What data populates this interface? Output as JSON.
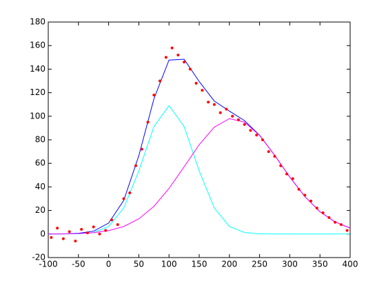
{
  "chart_data": {
    "type": "line",
    "xlim": [
      -100,
      400
    ],
    "xticks": [
      -100,
      -50,
      0,
      50,
      100,
      150,
      200,
      250,
      300,
      350,
      400
    ],
    "ylim": [
      -20,
      180
    ],
    "yticks": [
      -20,
      0,
      20,
      40,
      60,
      80,
      100,
      120,
      140,
      160,
      180
    ],
    "series": [
      {
        "color": "#ff0000",
        "style": "points",
        "x": [
          -95,
          -85,
          -75,
          -65,
          -55,
          -45,
          -35,
          -25,
          -15,
          -5,
          5,
          15,
          25,
          35,
          45,
          55,
          65,
          75,
          85,
          95,
          105,
          115,
          125,
          135,
          145,
          155,
          165,
          175,
          185,
          195,
          205,
          215,
          225,
          235,
          245,
          255,
          265,
          275,
          285,
          295,
          305,
          315,
          325,
          335,
          345,
          355,
          365,
          375,
          385,
          395
        ],
        "values": [
          -3,
          5,
          -4,
          2,
          -6,
          4,
          1,
          6,
          0,
          3,
          12,
          8,
          30,
          35,
          58,
          72,
          95,
          118,
          130,
          150,
          158,
          152,
          146,
          140,
          128,
          122,
          112,
          110,
          103,
          106,
          100,
          97,
          93,
          88,
          84,
          80,
          70,
          66,
          58,
          51,
          47,
          38,
          33,
          28,
          22,
          18,
          14,
          10,
          8,
          3
        ]
      },
      {
        "color": "#0000ff",
        "style": "line",
        "x": [
          -100,
          -75,
          -50,
          -25,
          0,
          25,
          50,
          75,
          100,
          125,
          150,
          175,
          200,
          225,
          250,
          275,
          300,
          325,
          350,
          375,
          400
        ],
        "values": [
          0,
          0.1,
          0.6,
          2.4,
          9.3,
          28.5,
          66.5,
          114.8,
          147.7,
          148.4,
          129.5,
          112.9,
          104.4,
          96.3,
          83.9,
          66.8,
          48.4,
          31.8,
          18.9,
          10.3,
          5.0
        ]
      },
      {
        "color": "#00ffff",
        "style": "line",
        "x": [
          -100,
          -75,
          -50,
          -25,
          0,
          25,
          50,
          75,
          100,
          125,
          150,
          175,
          200,
          225,
          250,
          275,
          300,
          325,
          350,
          375,
          400
        ],
        "values": [
          0,
          0,
          0.2,
          1.3,
          6.4,
          22.1,
          53.6,
          91.3,
          109,
          91.3,
          53.6,
          22.1,
          6.4,
          1.3,
          0.2,
          0,
          0,
          0,
          0,
          0,
          0
        ]
      },
      {
        "color": "#ff00ff",
        "style": "line",
        "x": [
          -100,
          -75,
          -50,
          -25,
          0,
          25,
          50,
          75,
          100,
          125,
          150,
          175,
          200,
          225,
          250,
          275,
          300,
          325,
          350,
          375,
          400
        ],
        "values": [
          0,
          0.1,
          0.4,
          1.1,
          2.9,
          6.4,
          12.9,
          23.5,
          38.7,
          57.1,
          75.9,
          90.8,
          98,
          95,
          83.7,
          66.8,
          48.4,
          31.8,
          18.9,
          10.3,
          5.0
        ]
      }
    ]
  }
}
